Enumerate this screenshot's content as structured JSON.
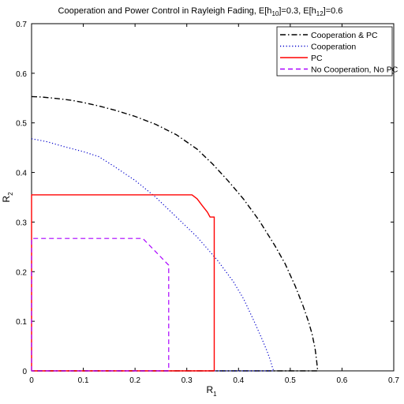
{
  "chart_data": {
    "type": "line",
    "title": {
      "main": "Cooperation and Power Control in Rayleigh Fading, E[h",
      "sub1": "10",
      "mid": "]=0.3, E[h",
      "sub2": "12",
      "end": "]=0.6"
    },
    "xlabel": {
      "base": "R",
      "sub": "1"
    },
    "ylabel": {
      "base": "R",
      "sub": "2"
    },
    "xlim": [
      0,
      0.7
    ],
    "ylim": [
      0,
      0.7
    ],
    "xticks": [
      "0",
      "0.1",
      "0.2",
      "0.3",
      "0.4",
      "0.5",
      "0.6",
      "0.7"
    ],
    "yticks": [
      "0",
      "0.1",
      "0.2",
      "0.3",
      "0.4",
      "0.5",
      "0.6",
      "0.7"
    ],
    "grid": false,
    "legend_position": "top-right",
    "series": [
      {
        "name": "Cooperation & PC",
        "color": "#000000",
        "dash": "dash-dot",
        "points": [
          [
            0,
            0.553
          ],
          [
            0,
            0.553
          ],
          [
            0.02,
            0.552
          ],
          [
            0.05,
            0.549
          ],
          [
            0.08,
            0.545
          ],
          [
            0.1,
            0.541
          ],
          [
            0.13,
            0.534
          ],
          [
            0.16,
            0.526
          ],
          [
            0.2,
            0.513
          ],
          [
            0.24,
            0.497
          ],
          [
            0.28,
            0.476
          ],
          [
            0.32,
            0.447
          ],
          [
            0.35,
            0.417
          ],
          [
            0.38,
            0.383
          ],
          [
            0.41,
            0.346
          ],
          [
            0.44,
            0.303
          ],
          [
            0.47,
            0.253
          ],
          [
            0.49,
            0.216
          ],
          [
            0.51,
            0.17
          ],
          [
            0.525,
            0.13
          ],
          [
            0.535,
            0.1
          ],
          [
            0.542,
            0.075
          ],
          [
            0.548,
            0.045
          ],
          [
            0.551,
            0.02
          ],
          [
            0.553,
            0
          ],
          [
            0.553,
            0
          ],
          [
            0,
            0
          ]
        ]
      },
      {
        "name": "Cooperation",
        "color": "#0000cc",
        "dash": "dotted",
        "points": [
          [
            0,
            0.468
          ],
          [
            0,
            0.468
          ],
          [
            0.03,
            0.462
          ],
          [
            0.06,
            0.453
          ],
          [
            0.1,
            0.442
          ],
          [
            0.13,
            0.432
          ],
          [
            0.16,
            0.412
          ],
          [
            0.2,
            0.384
          ],
          [
            0.24,
            0.35
          ],
          [
            0.28,
            0.31
          ],
          [
            0.32,
            0.27
          ],
          [
            0.36,
            0.222
          ],
          [
            0.39,
            0.18
          ],
          [
            0.41,
            0.145
          ],
          [
            0.43,
            0.1
          ],
          [
            0.445,
            0.065
          ],
          [
            0.455,
            0.04
          ],
          [
            0.462,
            0.02
          ],
          [
            0.466,
            0.005
          ],
          [
            0.468,
            0
          ],
          [
            0,
            0
          ]
        ]
      },
      {
        "name": "PC",
        "color": "#ff0000",
        "dash": "solid",
        "points": [
          [
            0,
            0
          ],
          [
            0,
            0.355
          ],
          [
            0.31,
            0.355
          ],
          [
            0.32,
            0.347
          ],
          [
            0.33,
            0.333
          ],
          [
            0.34,
            0.32
          ],
          [
            0.345,
            0.31
          ],
          [
            0.353,
            0.31
          ],
          [
            0.353,
            0
          ],
          [
            0,
            0
          ]
        ]
      },
      {
        "name": "No Cooperation, No PC",
        "color": "#aa00ff",
        "dash": "dashed",
        "points": [
          [
            0,
            0
          ],
          [
            0,
            0.267
          ],
          [
            0.215,
            0.267
          ],
          [
            0.265,
            0.213
          ],
          [
            0.265,
            0
          ],
          [
            0,
            0
          ]
        ]
      }
    ]
  }
}
